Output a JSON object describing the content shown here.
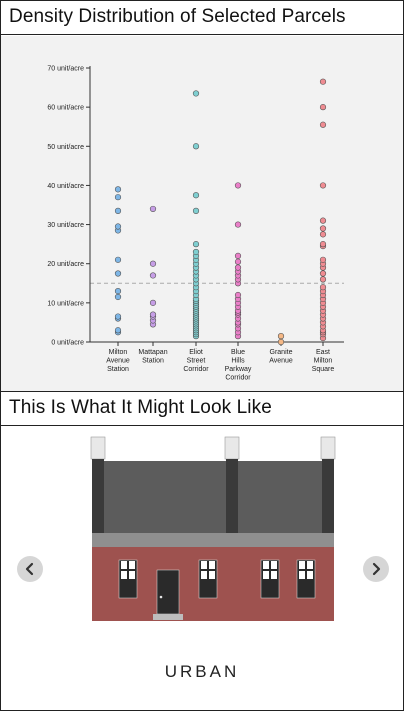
{
  "panels": {
    "chart_title": "Density Distribution of Selected Parcels",
    "preview_title": "This Is What It Might Look Like",
    "typology_caption": "URBAN"
  },
  "carousel": {
    "prev_icon": "chevron-left-icon",
    "next_icon": "chevron-right-icon"
  },
  "chart_data": {
    "type": "scatter",
    "title": "Density Distribution of Selected Parcels",
    "xlabel": "",
    "ylabel": "",
    "ylim": [
      0,
      70
    ],
    "y_ticks": [
      0,
      10,
      20,
      30,
      40,
      50,
      60,
      70
    ],
    "y_tick_labels": [
      "0 unit/acre",
      "10 unit/acre",
      "20 unit/acre",
      "30 unit/acre",
      "40 unit/acre",
      "50 unit/acre",
      "60 unit/acre",
      "70 unit/acre"
    ],
    "reference_line_y": 15,
    "grid": false,
    "categories": [
      {
        "label": [
          "Milton",
          "Avenue",
          "Station"
        ],
        "color": "#7eb6e6",
        "values": [
          2.5,
          3,
          6,
          6.5,
          11.5,
          13,
          17.5,
          21,
          28.5,
          29.5,
          33.5,
          37,
          39
        ]
      },
      {
        "label": [
          "Mattapan",
          "Station"
        ],
        "color": "#c69ee6",
        "values": [
          4.5,
          5.5,
          6.5,
          7,
          10,
          17,
          20,
          34
        ]
      },
      {
        "label": [
          "Eliot",
          "Street",
          "Corridor"
        ],
        "color": "#7fcfd1",
        "values": [
          1.5,
          2,
          2.5,
          3,
          3.5,
          4,
          4.5,
          5,
          5.5,
          6,
          6.5,
          7,
          7.5,
          8,
          8.5,
          9,
          9.5,
          10,
          10.5,
          11,
          12,
          13,
          14,
          15,
          16,
          17,
          18,
          19,
          20,
          21,
          22,
          23,
          25,
          33.5,
          37.5,
          50,
          63.5
        ]
      },
      {
        "label": [
          "Blue",
          "Hills",
          "Parkway",
          "Corridor"
        ],
        "color": "#ea7fc8",
        "values": [
          1.5,
          2.5,
          3.5,
          4.5,
          5,
          6,
          7,
          7.5,
          8,
          9,
          10,
          11,
          12,
          15,
          16,
          17,
          18,
          19,
          20.5,
          22,
          30,
          40
        ]
      },
      {
        "label": [
          "Granite",
          "Avenue"
        ],
        "color": "#f5b886",
        "values": [
          0,
          1.5
        ]
      },
      {
        "label": [
          "East",
          "Milton",
          "Square"
        ],
        "color": "#ef8c92",
        "values": [
          1,
          2,
          2.5,
          3,
          4,
          5,
          6,
          7,
          8,
          9,
          10,
          11,
          12,
          13,
          14,
          16,
          17.5,
          19,
          20,
          21,
          24.5,
          25,
          27.5,
          29,
          31,
          40,
          55.5,
          60,
          66.5
        ]
      }
    ]
  }
}
